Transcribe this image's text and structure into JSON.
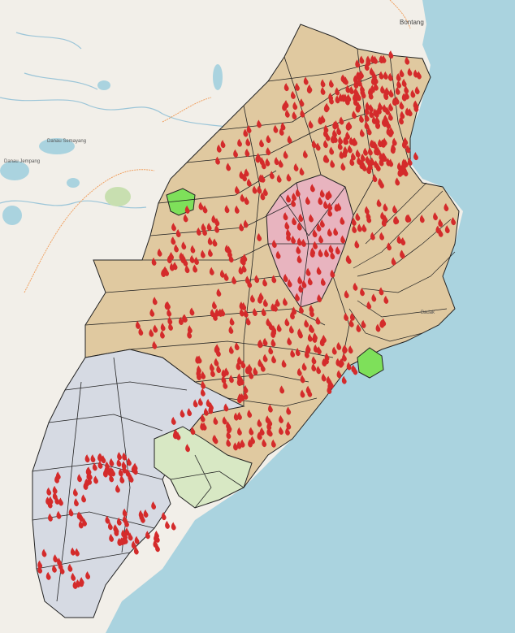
{
  "map": {
    "labels": {
      "bontang": "Bontang",
      "lake_upper": "Danau Semayang",
      "lake_lower": "Danau Jempang",
      "badak": "Badak"
    },
    "colors": {
      "land": "#f2efe9",
      "sea": "#aad3df",
      "north_district": "#e0c9a0",
      "south_district": "#d6dae3",
      "city_district": "#e8b4bf",
      "southeast_district": "#d8e8c4",
      "green_patch": "#7ee05a",
      "fire_marker": "#d42b2b",
      "boundary": "#222222"
    },
    "fire_icon": "fire-icon"
  }
}
